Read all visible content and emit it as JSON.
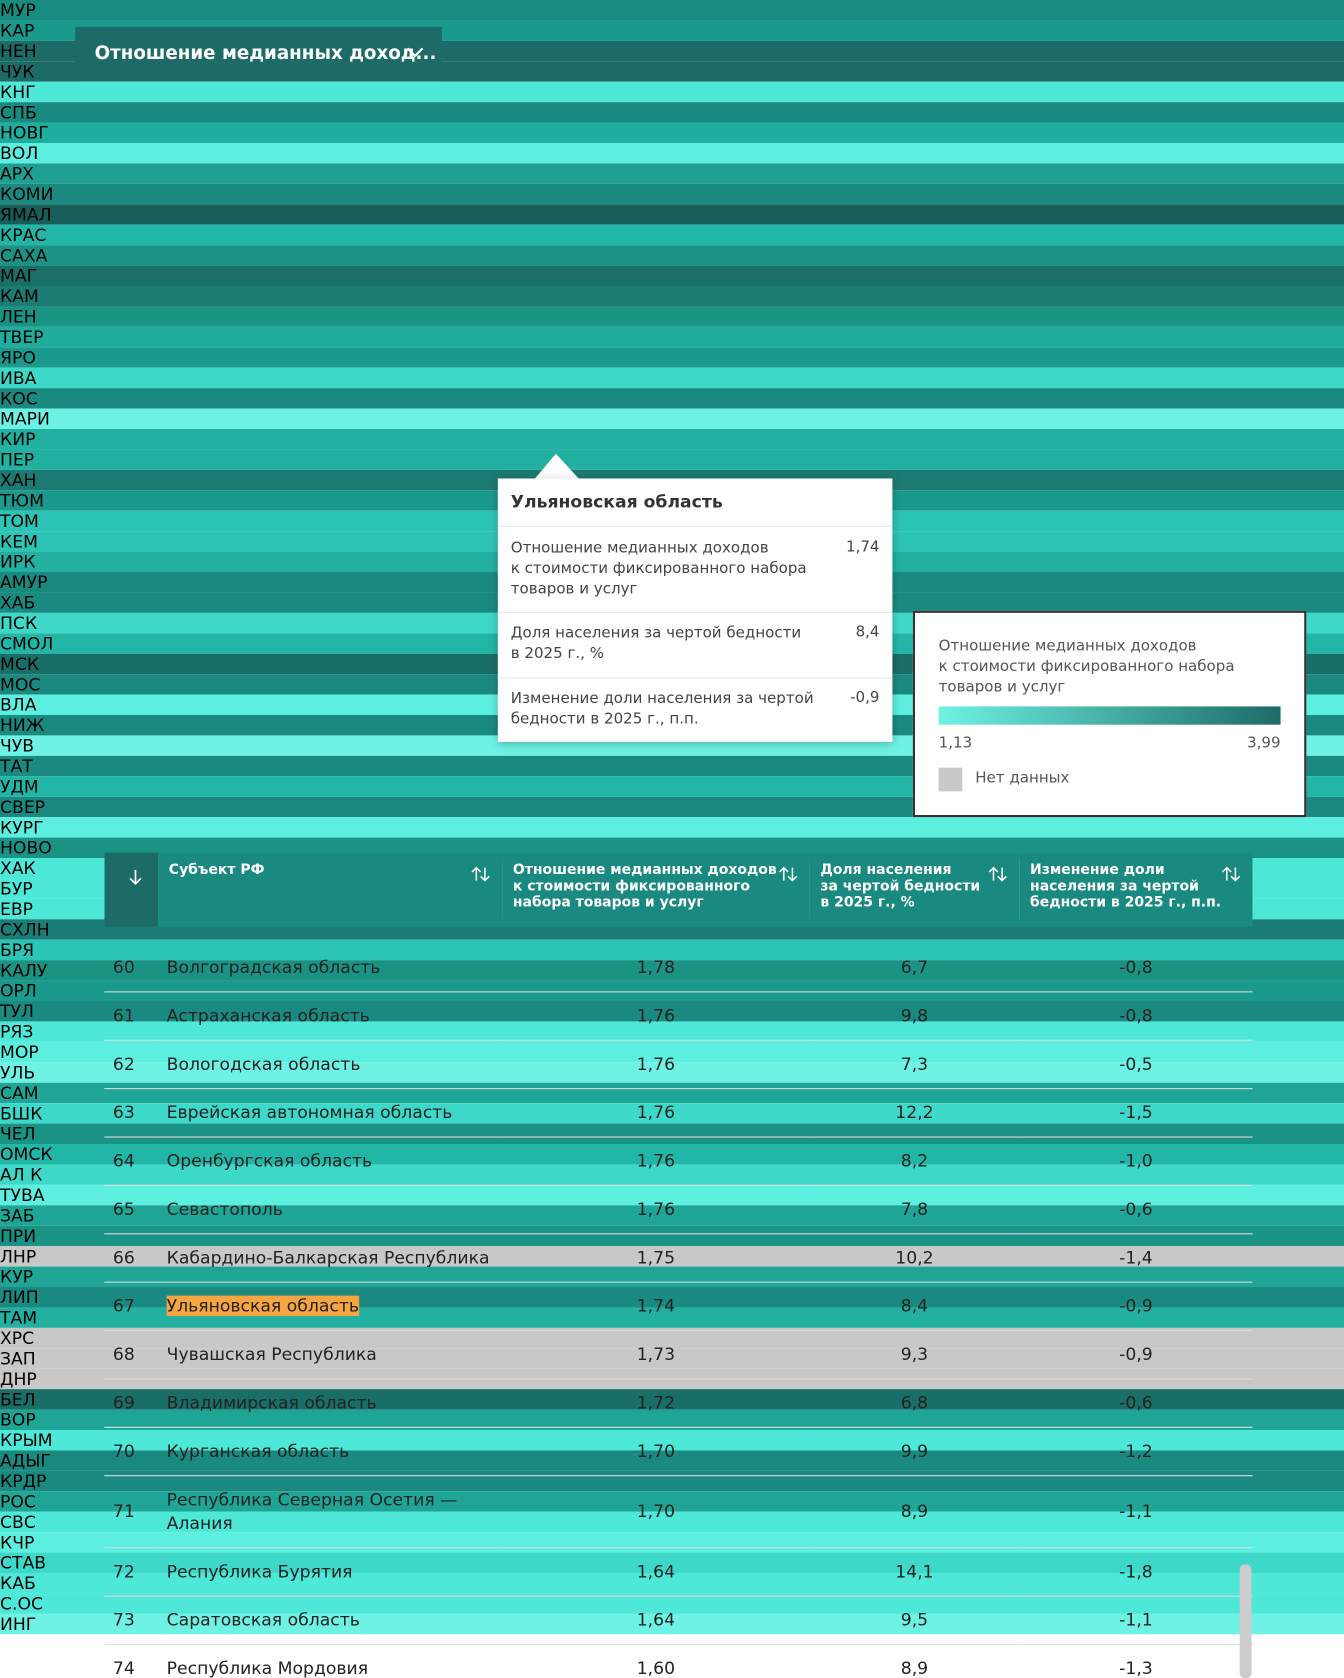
{
  "dropdown": {
    "label": "Отношение медианных доход..."
  },
  "map": {
    "tiles": [
      {
        "label": "МУР",
        "color": "#1a8b80"
      },
      {
        "label": "КАР",
        "color": "#1a9a8c"
      },
      {
        "label": "НЕН",
        "color": "#1d6b66"
      },
      {
        "label": "ЧУК",
        "color": "#1d6b66"
      },
      {
        "label": "КНГ",
        "color": "#4de8d8"
      },
      {
        "label": "СПБ",
        "color": "#1a8a80"
      },
      {
        "label": "НОВГ",
        "color": "#1fae9e"
      },
      {
        "label": "ВОЛ",
        "color": "#5cefe0"
      },
      {
        "label": "АРХ",
        "color": "#1fa090"
      },
      {
        "label": "КОМИ",
        "color": "#1a8a80"
      },
      {
        "label": "ЯМАЛ",
        "color": "#175e59"
      },
      {
        "label": "КРАС",
        "color": "#22b6a6"
      },
      {
        "label": "САХА",
        "color": "#1a9385"
      },
      {
        "label": "МАГ",
        "color": "#1b6f69"
      },
      {
        "label": "КАМ",
        "color": "#1b7c74"
      },
      {
        "label": "ЛЕН",
        "color": "#1a9385"
      },
      {
        "label": "ТВЕР",
        "color": "#1fae9e"
      },
      {
        "label": "ЯРО",
        "color": "#1a9a8c"
      },
      {
        "label": "ИВА",
        "color": "#3ed8c8"
      },
      {
        "label": "КОС",
        "color": "#1a8a80"
      },
      {
        "label": "МАРИ",
        "color": "#6ef2e4"
      },
      {
        "label": "КИР",
        "color": "#22b0a0"
      },
      {
        "label": "ПЕР",
        "color": "#22b0a0"
      },
      {
        "label": "ХАН",
        "color": "#1c7a72"
      },
      {
        "label": "ТЮМ",
        "color": "#1a9a8c"
      },
      {
        "label": "ТОМ",
        "color": "#2cc4b4"
      },
      {
        "label": "КЕМ",
        "color": "#2cc4b4"
      },
      {
        "label": "ИРК",
        "color": "#22b0a0"
      },
      {
        "label": "АМУР",
        "color": "#1a8a80"
      },
      {
        "label": "ХАБ",
        "color": "#1a8a80"
      },
      {
        "label": "ПСК",
        "color": "#3ed8c8"
      },
      {
        "label": "СМОЛ",
        "color": "#22b6a6"
      },
      {
        "label": "МСК",
        "color": "#1a6e68"
      },
      {
        "label": "МОС",
        "color": "#1a8a80"
      },
      {
        "label": "ВЛА",
        "color": "#5cefe0"
      },
      {
        "label": "НИЖ",
        "color": "#1a8a80"
      },
      {
        "label": "ЧУВ",
        "color": "#6ef2e4"
      },
      {
        "label": "ТАТ",
        "color": "#1a8a80"
      },
      {
        "label": "УДМ",
        "color": "#22b6a6"
      },
      {
        "label": "СВЕР",
        "color": "#1a8a80"
      },
      {
        "label": "КУРГ",
        "color": "#5cefe0"
      },
      {
        "label": "НОВО",
        "color": "#1a9385"
      },
      {
        "label": "ХАК",
        "color": "#4de8d8"
      },
      {
        "label": "БУР",
        "color": "#4de8d8"
      },
      {
        "label": "ЕВР",
        "color": "#4de8d8"
      },
      {
        "label": "СХЛН",
        "color": "#1a7e76"
      },
      {
        "label": "БРЯ",
        "color": "#2cc4b4"
      },
      {
        "label": "КАЛУ",
        "color": "#1a9385"
      },
      {
        "label": "ОРЛ",
        "color": "#1a9a8c"
      },
      {
        "label": "ТУЛ",
        "color": "#1a8a80"
      },
      {
        "label": "РЯЗ",
        "color": "#4de8d8"
      },
      {
        "label": "МОР",
        "color": "#5cefe0"
      },
      {
        "label": "УЛЬ",
        "color": "#6ef2e4"
      },
      {
        "label": "САМ",
        "color": "#1fa595"
      },
      {
        "label": "БШК",
        "color": "#3ed8c8"
      },
      {
        "label": "ЧЕЛ",
        "color": "#1a9385"
      },
      {
        "label": "ОМСК",
        "color": "#22b6a6"
      },
      {
        "label": "АЛ К",
        "color": "#3ed8c8"
      },
      {
        "label": "ТУВА",
        "color": "#5cefe0"
      },
      {
        "label": "ЗАБ",
        "color": "#1fa595"
      },
      {
        "label": "ПРИ",
        "color": "#1a9385"
      },
      {
        "label": "ЛНР",
        "color": "#c8c8c8"
      },
      {
        "label": "КУР",
        "color": "#1fa595"
      },
      {
        "label": "ЛИП",
        "color": "#1a8a80"
      },
      {
        "label": "ТАМ",
        "color": "#22b0a0"
      },
      {
        "label": "ХРС",
        "color": "#c8c8c8"
      },
      {
        "label": "ЗАП",
        "color": "#c8c8c8"
      },
      {
        "label": "ДНР",
        "color": "#c8c8c8"
      },
      {
        "label": "БЕЛ",
        "color": "#1a6e68"
      },
      {
        "label": "ВОР",
        "color": "#1fa595"
      },
      {
        "label": "КРЫМ",
        "color": "#4de8d8"
      },
      {
        "label": "АДЫГ",
        "color": "#1a8a80"
      },
      {
        "label": "КРДР",
        "color": "#1a8a80"
      },
      {
        "label": "РОС",
        "color": "#1fa595"
      },
      {
        "label": "СВС",
        "color": "#4de8d8"
      },
      {
        "label": "КЧР",
        "color": "#5cefe0"
      },
      {
        "label": "СТАВ",
        "color": "#3ed8c8"
      },
      {
        "label": "КАБ",
        "color": "#4de8d8"
      },
      {
        "label": "С.ОС",
        "color": "#4de8d8"
      },
      {
        "label": "ИНГ",
        "color": "#6ef2e4"
      }
    ]
  },
  "tooltip": {
    "title": "Ульяновская область",
    "rows": [
      {
        "label": "Отношение медианных доходов\nк стоимости фиксированного набора\nтоваров и услуг",
        "value": "1,74"
      },
      {
        "label": "Доля населения за чертой бедности\nв 2025 г., %",
        "value": "8,4"
      },
      {
        "label": "Изменение доли населения за чертой\nбедности в 2025 г., п.п.",
        "value": "-0,9"
      }
    ]
  },
  "legend": {
    "title": "Отношение медианных доходов\nк стоимости фиксированного набора\nтоваров и услуг",
    "min": "1,13",
    "max": "3,99",
    "no_data": "Нет данных"
  },
  "table": {
    "columns": [
      "Субъект РФ",
      "Отношение медианных доходов\nк стоимости фиксированного\nнабора товаров и услуг",
      "Доля населения\nза чертой бедности\nв 2025 г., %",
      "Изменение доли\nнаселения за чертой\nбедности в 2025 г., п.п."
    ],
    "rows": [
      [
        "60",
        "Волгоградская область",
        "1,78",
        "6,7",
        "-0,8"
      ],
      [
        "61",
        "Астраханская область",
        "1,76",
        "9,8",
        "-0,8"
      ],
      [
        "62",
        "Вологодская область",
        "1,76",
        "7,3",
        "-0,5"
      ],
      [
        "63",
        "Еврейская автономная область",
        "1,76",
        "12,2",
        "-1,5"
      ],
      [
        "64",
        "Оренбургская область",
        "1,76",
        "8,2",
        "-1,0"
      ],
      [
        "65",
        "Севастополь",
        "1,76",
        "7,8",
        "-0,6"
      ],
      [
        "66",
        "Кабардино-Балкарская Республика",
        "1,75",
        "10,2",
        "-1,4"
      ],
      [
        "67",
        "Ульяновская область",
        "1,74",
        "8,4",
        "-0,9"
      ],
      [
        "68",
        "Чувашская Республика",
        "1,73",
        "9,3",
        "-0,9"
      ],
      [
        "69",
        "Владимирская область",
        "1,72",
        "6,8",
        "-0,6"
      ],
      [
        "70",
        "Курганская область",
        "1,70",
        "9,9",
        "-1,2"
      ],
      [
        "71",
        "Республика Северная Осетия —\nАлания",
        "1,70",
        "8,9",
        "-1,1"
      ],
      [
        "72",
        "Республика Бурятия",
        "1,64",
        "14,1",
        "-1,8"
      ],
      [
        "73",
        "Саратовская область",
        "1,64",
        "9,5",
        "-1,1"
      ],
      [
        "74",
        "Республика Мордовия",
        "1,60",
        "8,9",
        "-1,3"
      ]
    ],
    "highlighted_row": 7
  }
}
